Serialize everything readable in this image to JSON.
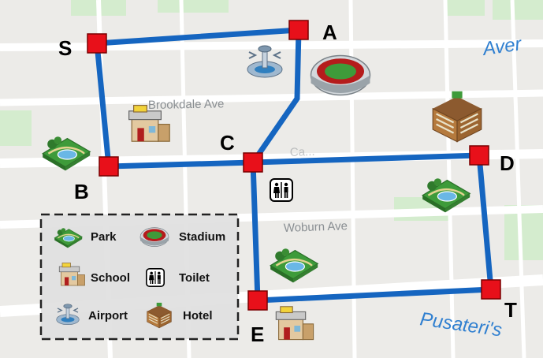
{
  "streets": {
    "brookdale": "Brookdale Ave",
    "woburn": "Woburn Ave",
    "pusateri": "Pusateri's",
    "aver": "Aver",
    "faint": "Ca..."
  },
  "nodes": {
    "S": "S",
    "A": "A",
    "B": "B",
    "C": "C",
    "D": "D",
    "E": "E",
    "T": "T"
  },
  "legend": {
    "park": "Park",
    "stadium": "Stadium",
    "school": "School",
    "toilet": "Toilet",
    "airport": "Airport",
    "hotel": "Hotel"
  },
  "colors": {
    "route": "#1565c0",
    "node": "#e8101a",
    "map_bg": "#eceae6",
    "park_green": "#cdebc5",
    "street_blue": "#2f7fd0"
  }
}
